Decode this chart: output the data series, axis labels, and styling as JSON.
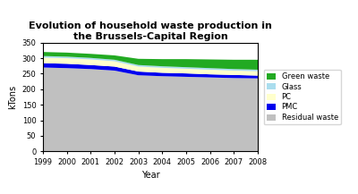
{
  "title": "Evolution of household waste production in\nthe Brussels-Capital Region",
  "xlabel": "Year",
  "ylabel": "kTons",
  "years": [
    1999,
    2000,
    2001,
    2002,
    2003,
    2004,
    2005,
    2006,
    2007,
    2008
  ],
  "residual_waste": [
    270,
    268,
    265,
    260,
    245,
    242,
    240,
    238,
    236,
    235
  ],
  "PMC": [
    14,
    14,
    13,
    13,
    12,
    11,
    11,
    10,
    10,
    9
  ],
  "PC": [
    18,
    18,
    18,
    17,
    16,
    16,
    15,
    15,
    14,
    14
  ],
  "Glass": [
    5,
    5,
    5,
    5,
    5,
    5,
    5,
    5,
    5,
    5
  ],
  "Green_waste": [
    13,
    13,
    13,
    14,
    20,
    23,
    26,
    28,
    30,
    32
  ],
  "colors": {
    "Residual waste": "#c0c0c0",
    "PMC": "#0000ee",
    "PC": "#ffffcc",
    "Glass": "#aaddee",
    "Green waste": "#22aa22"
  },
  "ylim": [
    0,
    350
  ],
  "yticks": [
    0,
    50,
    100,
    150,
    200,
    250,
    300,
    350
  ],
  "bg_color": "#ffffff",
  "fig_width": 4.0,
  "fig_height": 2.17,
  "dpi": 100
}
